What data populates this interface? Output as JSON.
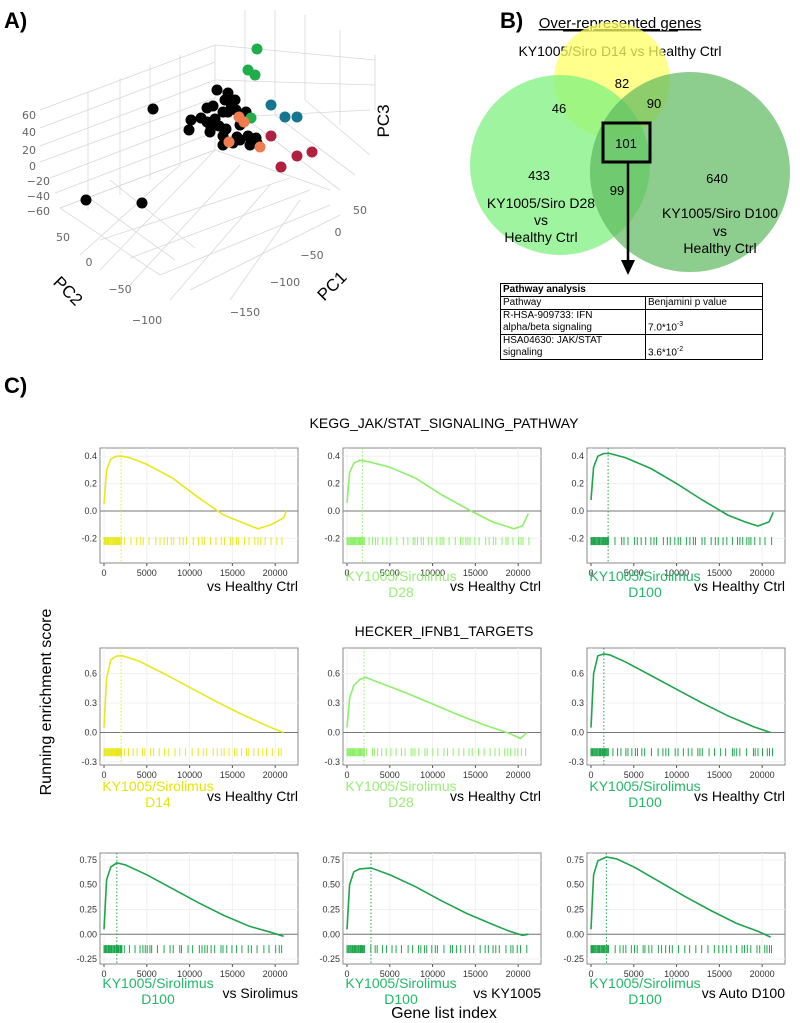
{
  "panel_labels": {
    "a": "A)",
    "b": "B)",
    "c": "C)"
  },
  "pca": {
    "axes": {
      "pc1": "PC1",
      "pc2": "PC2",
      "pc3": "PC3"
    },
    "pc3_ticks": [
      "60",
      "40",
      "20",
      "0",
      "−20",
      "−40",
      "−60"
    ],
    "pc2_ticks": [
      "50",
      "0",
      "−50",
      "−100"
    ],
    "pc1_ticks": [
      "50",
      "0",
      "−50",
      "−100",
      "−150"
    ],
    "groups": [
      {
        "color": "#000000",
        "count": 33
      },
      {
        "color": "#1fae4b",
        "count": 4
      },
      {
        "color": "#17768f",
        "count": 3
      },
      {
        "color": "#b0203f",
        "count": 4
      },
      {
        "color": "#ee7c4e",
        "count": 4
      }
    ]
  },
  "venn": {
    "title": "Over-represented genes",
    "set_d14": "KY1005/Siro D14 vs Healthy Ctrl",
    "set_d28": [
      "KY1005/Siro D28",
      "vs",
      "Healthy Ctrl"
    ],
    "set_d100": [
      "KY1005/Siro D100",
      "vs",
      "Healthy Ctrl"
    ],
    "counts": {
      "d14_only": "82",
      "d14_d28": "46",
      "d14_d100": "90",
      "all": "101",
      "d28_only": "433",
      "d28_d100": "99",
      "d100_only": "640"
    },
    "colors": {
      "d14": "#ffff66",
      "d28": "#7ff27f",
      "d100": "#5cb85c"
    }
  },
  "pathway_table": {
    "title": "Pathway analysis",
    "headers": [
      "Pathway",
      "Benjamini p value"
    ],
    "rows": [
      {
        "pathway": [
          "R-HSA-909733: IFN",
          "alpha/beta signaling"
        ],
        "p_base": "7.0*10",
        "p_exp": "-3"
      },
      {
        "pathway": [
          "HSA04630: JAK/STAT",
          "signaling"
        ],
        "p_base": "3.6*10",
        "p_exp": "-2"
      }
    ]
  },
  "gsea": {
    "ylabel": "Running enrichment score",
    "xlabel": "Gene list index",
    "row_titles": [
      "KEGG_JAK/STAT_SIGNALING_PATHWAY",
      "HECKER_IFNB1_TARGETS",
      ""
    ]
  },
  "chart_data": [
    {
      "type": "line",
      "title": "KEGG_JAK/STAT_SIGNALING_PATHWAY",
      "xlim": [
        0,
        21500
      ],
      "x_ticks": [
        "0",
        "5000",
        "10000",
        "15000",
        "20000"
      ],
      "ylim": [
        -0.38,
        0.46
      ],
      "y_ticks": [
        "0.4",
        "0.2",
        "0.0",
        "-0.2"
      ],
      "y_tick_values": [
        0.4,
        0.2,
        0.0,
        -0.2
      ],
      "rug_y": -0.22,
      "panels": [
        {
          "group": "KY1005/Sirolimus D14",
          "caption": [
            "",
            ""
          ],
          "vs": "vs  Healthy Ctrl",
          "color": "#e8e81c",
          "caption_color": "#e6e600",
          "peak_x": 2000,
          "x": [
            0,
            300,
            800,
            1500,
            2000,
            3000,
            5000,
            8000,
            11000,
            14000,
            18000,
            19500,
            21000,
            21300
          ],
          "y": [
            0.05,
            0.3,
            0.38,
            0.4,
            0.4,
            0.39,
            0.34,
            0.24,
            0.1,
            -0.03,
            -0.13,
            -0.1,
            -0.05,
            0
          ]
        },
        {
          "group": "KY1005/Sirolimus D28",
          "caption": [
            "KY1005/Sirolimus",
            "D28"
          ],
          "vs": "vs  Healthy Ctrl",
          "color": "#8ef06a",
          "caption_color": "#98ee78",
          "peak_x": 1800,
          "x": [
            0,
            300,
            800,
            1500,
            2500,
            5000,
            8000,
            11000,
            14500,
            17000,
            19500,
            20500,
            21200
          ],
          "y": [
            0.06,
            0.28,
            0.35,
            0.37,
            0.36,
            0.32,
            0.24,
            0.12,
            0.0,
            -0.08,
            -0.13,
            -0.11,
            -0.02
          ]
        },
        {
          "group": "KY1005/Sirolimus D100",
          "caption": [
            "KY1005/Sirolimus",
            "D100"
          ],
          "vs": "vs  Healthy Ctrl",
          "color": "#1ea54c",
          "caption_color": "#22b868",
          "peak_x": 2000,
          "x": [
            0,
            300,
            800,
            1500,
            2200,
            4000,
            7000,
            10000,
            13000,
            16000,
            18000,
            19500,
            20800,
            21300
          ],
          "y": [
            0.08,
            0.32,
            0.4,
            0.42,
            0.42,
            0.39,
            0.31,
            0.2,
            0.08,
            -0.03,
            -0.08,
            -0.11,
            -0.08,
            -0.01
          ]
        }
      ]
    },
    {
      "type": "line",
      "title": "HECKER_IFNB1_TARGETS",
      "xlim": [
        0,
        21500
      ],
      "x_ticks": [
        "0",
        "5000",
        "10000",
        "15000",
        "20000"
      ],
      "ylim": [
        -0.33,
        0.86
      ],
      "y_ticks": [
        "0.6",
        "0.3",
        "0.0",
        "-0.3"
      ],
      "y_tick_values": [
        0.6,
        0.3,
        0.0,
        -0.3
      ],
      "rug_y": -0.2,
      "panels": [
        {
          "group": "KY1005/Sirolimus D14",
          "caption": [
            "KY1005/Sirolimus",
            "D14"
          ],
          "vs": "vs  Healthy Ctrl",
          "color": "#e8e81c",
          "caption_color": "#e6e600",
          "peak_x": 2000,
          "x": [
            0,
            300,
            800,
            1500,
            2200,
            4000,
            7000,
            10000,
            13000,
            16000,
            19000,
            21000
          ],
          "y": [
            0.05,
            0.55,
            0.74,
            0.78,
            0.78,
            0.73,
            0.6,
            0.46,
            0.32,
            0.19,
            0.07,
            0.0
          ]
        },
        {
          "group": "KY1005/Sirolimus D28",
          "caption": [
            "KY1005/Sirolimus",
            "D28"
          ],
          "vs": "vs  Healthy Ctrl",
          "color": "#8ef06a",
          "caption_color": "#98ee78",
          "peak_x": 2000,
          "x": [
            0,
            300,
            800,
            1500,
            2200,
            4000,
            7000,
            10000,
            13000,
            16000,
            19000,
            20300,
            21000
          ],
          "y": [
            0.05,
            0.35,
            0.48,
            0.54,
            0.56,
            0.5,
            0.4,
            0.29,
            0.18,
            0.08,
            -0.01,
            -0.06,
            0.0
          ]
        },
        {
          "group": "KY1005/Sirolimus D100",
          "caption": [
            "KY1005/Sirolimus",
            "D100"
          ],
          "vs": "vs  Healthy Ctrl",
          "color": "#1ea54c",
          "caption_color": "#22b868",
          "peak_x": 1500,
          "x": [
            0,
            300,
            800,
            1500,
            2200,
            4000,
            7000,
            10000,
            13000,
            16000,
            19000,
            21000
          ],
          "y": [
            0.05,
            0.6,
            0.78,
            0.8,
            0.79,
            0.72,
            0.58,
            0.44,
            0.3,
            0.17,
            0.06,
            0.0
          ]
        }
      ]
    },
    {
      "type": "line",
      "title": "",
      "xlim": [
        0,
        21500
      ],
      "x_ticks": [
        "0",
        "5000",
        "10000",
        "15000",
        "20000"
      ],
      "ylim": [
        -0.3,
        0.82
      ],
      "y_ticks": [
        "0.75",
        "0.50",
        "0.25",
        "0.00",
        "-0.25"
      ],
      "y_tick_values": [
        0.75,
        0.5,
        0.25,
        0.0,
        -0.25
      ],
      "rug_y": -0.15,
      "panels": [
        {
          "group": "KY1005/Sirolimus D100",
          "caption": [
            "KY1005/Sirolimus",
            "D100"
          ],
          "vs": "vs  Sirolimus",
          "color": "#1ea54c",
          "caption_color": "#22b868",
          "peak_x": 1500,
          "x": [
            0,
            300,
            800,
            1500,
            2500,
            5000,
            8000,
            11000,
            14000,
            17000,
            19500,
            21000
          ],
          "y": [
            0.05,
            0.55,
            0.68,
            0.72,
            0.7,
            0.6,
            0.46,
            0.32,
            0.19,
            0.08,
            0.02,
            -0.02
          ]
        },
        {
          "group": "KY1005/Sirolimus D100",
          "caption": [
            "KY1005/Sirolimus",
            "D100"
          ],
          "vs": "vs  KY1005",
          "color": "#1ea54c",
          "caption_color": "#22b868",
          "peak_x": 2800,
          "x": [
            0,
            300,
            800,
            1500,
            2800,
            5000,
            8000,
            11000,
            14000,
            17000,
            19000,
            20500,
            21200
          ],
          "y": [
            0.05,
            0.5,
            0.63,
            0.66,
            0.67,
            0.6,
            0.48,
            0.34,
            0.21,
            0.1,
            0.03,
            -0.01,
            0.0
          ]
        },
        {
          "group": "KY1005/Sirolimus D100",
          "caption": [
            "KY1005/Sirolimus",
            "D100"
          ],
          "vs": "vs  Auto D100",
          "color": "#1ea54c",
          "caption_color": "#22b868",
          "peak_x": 1800,
          "x": [
            0,
            300,
            800,
            1800,
            3000,
            5000,
            8000,
            11000,
            14000,
            17000,
            19500,
            21000
          ],
          "y": [
            0.05,
            0.6,
            0.74,
            0.78,
            0.76,
            0.68,
            0.53,
            0.38,
            0.24,
            0.11,
            0.03,
            -0.03
          ]
        }
      ]
    }
  ]
}
